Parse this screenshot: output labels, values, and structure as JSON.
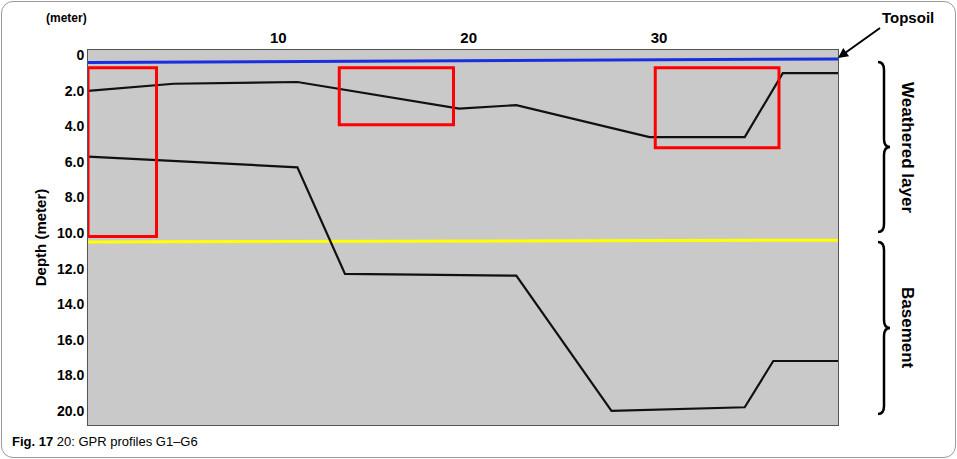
{
  "chart_data": {
    "type": "line",
    "x_label": "(meter)",
    "y_label": "Depth (meter)",
    "caption": {
      "label": "Fig. 17",
      "text": "20: GPR profiles G1–G6"
    },
    "annotations": [
      "Topsoil",
      "Weathered layer",
      "Basement"
    ],
    "xlim": [
      0,
      39.4
    ],
    "xticks": [
      10,
      20,
      30
    ],
    "ylim": [
      20.8,
      -0.3
    ],
    "yticks": [
      0,
      {
        "value": 2,
        "label": "2.0"
      },
      {
        "value": 4,
        "label": "4.0"
      },
      {
        "value": 6,
        "label": "6.0"
      },
      {
        "value": 8,
        "label": "8.0"
      },
      {
        "value": 10,
        "label": "10.0"
      },
      {
        "value": 12,
        "label": "12.0"
      },
      {
        "value": 14,
        "label": "14.0"
      },
      {
        "value": 16,
        "label": "16.0"
      },
      {
        "value": 18,
        "label": "18.0"
      },
      {
        "value": 20,
        "label": "20.0"
      }
    ],
    "grid": false,
    "series": [
      {
        "color": "#1a2fe0",
        "line_style": "solid",
        "x": [
          0,
          39.4
        ],
        "values": [
          0.4,
          0.2
        ]
      },
      {
        "color": "#ffff00",
        "line_style": "solid",
        "x": [
          0,
          39.4
        ],
        "values": [
          10.5,
          10.4
        ]
      },
      {
        "color": "#111111",
        "line_style": "solid",
        "x": [
          0,
          4.5,
          11,
          19.5,
          22.5,
          29.5,
          34.5,
          36.5,
          39.4
        ],
        "values": [
          2.0,
          1.6,
          1.5,
          3.0,
          2.8,
          4.6,
          4.6,
          1.0,
          1.0
        ]
      },
      {
        "color": "#111111",
        "line_style": "solid",
        "x": [
          0,
          11,
          13.5,
          22.5,
          27.5,
          34.5,
          36,
          39.4
        ],
        "values": [
          5.7,
          6.3,
          12.3,
          12.4,
          20.0,
          19.8,
          17.2,
          17.2
        ]
      }
    ],
    "boxes": [
      {
        "x0": 0,
        "x1": 3.6,
        "y0": 0.7,
        "y1": 10.2,
        "color": "#ff0000"
      },
      {
        "x0": 13.2,
        "x1": 19.2,
        "y0": 0.7,
        "y1": 3.9,
        "color": "#ff0000"
      },
      {
        "x0": 29.8,
        "x1": 36.3,
        "y0": 0.7,
        "y1": 5.2,
        "color": "#ff0000"
      }
    ]
  }
}
